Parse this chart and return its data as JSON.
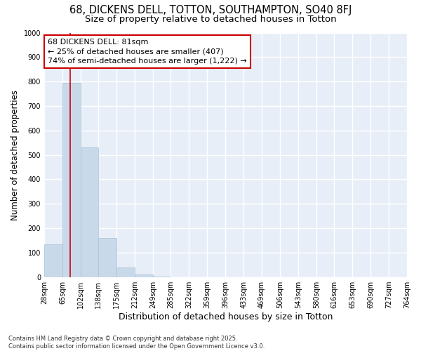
{
  "title_line1": "68, DICKENS DELL, TOTTON, SOUTHAMPTON, SO40 8FJ",
  "title_line2": "Size of property relative to detached houses in Totton",
  "xlabel": "Distribution of detached houses by size in Totton",
  "ylabel": "Number of detached properties",
  "bar_edges": [
    28,
    65,
    102,
    138,
    175,
    212,
    249,
    285,
    322,
    359,
    396,
    433,
    469,
    506,
    543,
    580,
    616,
    653,
    690,
    727,
    764
  ],
  "bar_heights": [
    135,
    795,
    530,
    160,
    40,
    10,
    2,
    0,
    0,
    0,
    0,
    0,
    0,
    0,
    0,
    0,
    0,
    0,
    0,
    0
  ],
  "bar_color": "#c8d9ea",
  "bar_edgecolor": "#a8c0d6",
  "bar_linewidth": 0.5,
  "vline_x": 81,
  "vline_color": "#cc0000",
  "vline_linewidth": 1.2,
  "ann_line1": "68 DICKENS DELL: 81sqm",
  "ann_line2": "← 25% of detached houses are smaller (407)",
  "ann_line3": "74% of semi-detached houses are larger (1,222) →",
  "box_edgecolor": "#cc0000",
  "box_facecolor": "#ffffff",
  "ylim": [
    0,
    1000
  ],
  "yticks": [
    0,
    100,
    200,
    300,
    400,
    500,
    600,
    700,
    800,
    900,
    1000
  ],
  "background_color": "#ffffff",
  "plot_background": "#e8eef8",
  "grid_color": "#ffffff",
  "footer_line1": "Contains HM Land Registry data © Crown copyright and database right 2025.",
  "footer_line2": "Contains public sector information licensed under the Open Government Licence v3.0.",
  "title_fontsize": 10.5,
  "subtitle_fontsize": 9.5,
  "xlabel_fontsize": 9,
  "ylabel_fontsize": 8.5,
  "tick_fontsize": 7,
  "footer_fontsize": 6,
  "annotation_fontsize": 8
}
